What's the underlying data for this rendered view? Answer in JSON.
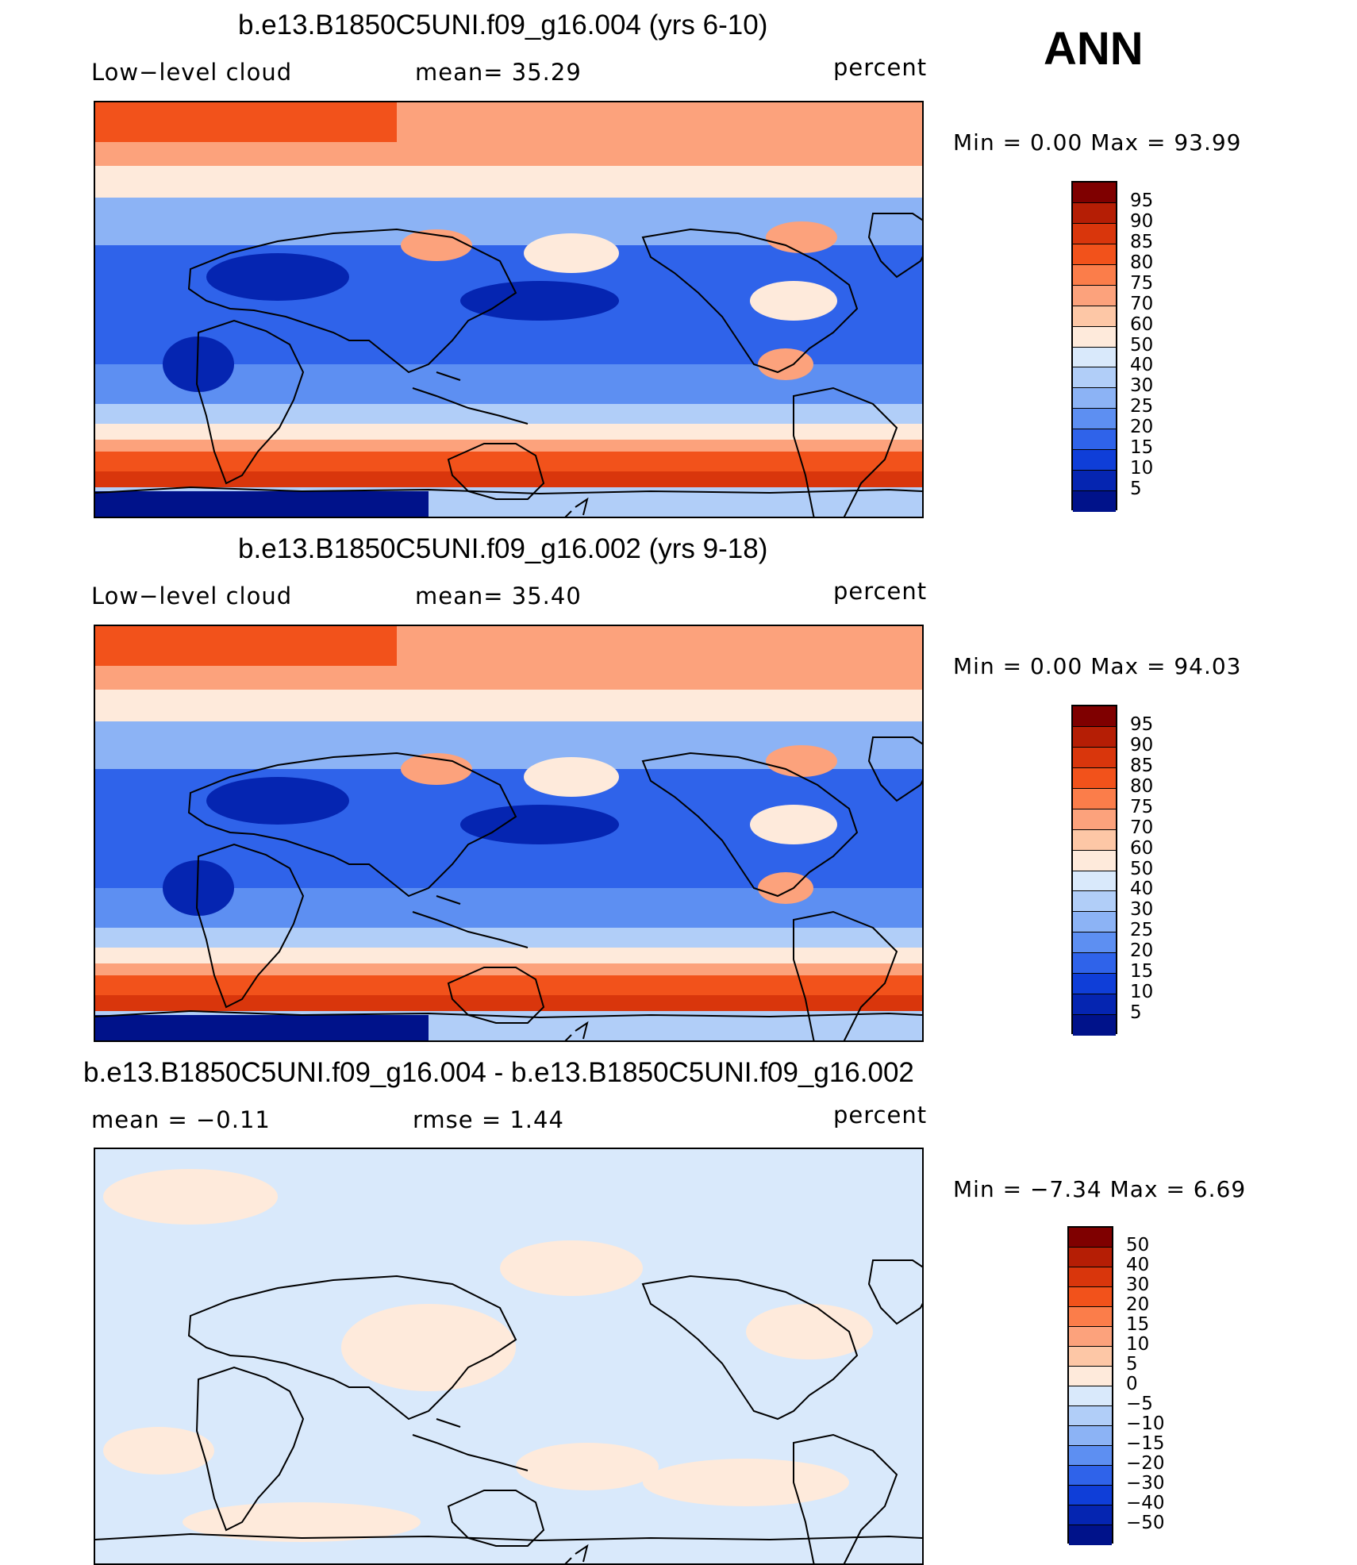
{
  "season": "ANN",
  "panels": [
    {
      "title": "b.e13.B1850C5UNI.f09_g16.004 (yrs 6-10)",
      "left_label": "Low−level cloud",
      "center_label": "mean=   35.29",
      "units": "percent",
      "minmax": "Min =     0.00  Max =    93.99",
      "colorbar": {
        "labels": [
          "95",
          "90",
          "85",
          "80",
          "75",
          "70",
          "60",
          "50",
          "40",
          "30",
          "25",
          "20",
          "15",
          "10",
          "5"
        ],
        "colors": [
          "#7f0000",
          "#b51e05",
          "#d9360c",
          "#f2521b",
          "#fb7d4a",
          "#fca27c",
          "#fdc7a6",
          "#feeadb",
          "#d9e9fb",
          "#b1cef8",
          "#8cb3f5",
          "#5d8ff2",
          "#2f63ea",
          "#0f3ed8",
          "#0525b1",
          "#00128a"
        ]
      },
      "map_style": "cloud"
    },
    {
      "title": "b.e13.B1850C5UNI.f09_g16.002 (yrs 9-18)",
      "left_label": "Low−level cloud",
      "center_label": "mean=   35.40",
      "units": "percent",
      "minmax": "Min =     0.00  Max =    94.03",
      "colorbar": {
        "labels": [
          "95",
          "90",
          "85",
          "80",
          "75",
          "70",
          "60",
          "50",
          "40",
          "30",
          "25",
          "20",
          "15",
          "10",
          "5"
        ],
        "colors": [
          "#7f0000",
          "#b51e05",
          "#d9360c",
          "#f2521b",
          "#fb7d4a",
          "#fca27c",
          "#fdc7a6",
          "#feeadb",
          "#d9e9fb",
          "#b1cef8",
          "#8cb3f5",
          "#5d8ff2",
          "#2f63ea",
          "#0f3ed8",
          "#0525b1",
          "#00128a"
        ]
      },
      "map_style": "cloud"
    },
    {
      "title": "b.e13.B1850C5UNI.f09_g16.004 - b.e13.B1850C5UNI.f09_g16.002",
      "left_label": "mean  =   −0.11",
      "center_label": "rmse  =     1.44",
      "units": "percent",
      "minmax": "Min =   −7.34  Max =     6.69",
      "colorbar": {
        "labels": [
          "50",
          "40",
          "30",
          "20",
          "15",
          "10",
          "5",
          "0",
          "−5",
          "−10",
          "−15",
          "−20",
          "−30",
          "−40",
          "−50"
        ],
        "colors": [
          "#7f0000",
          "#b51e05",
          "#d9360c",
          "#f2521b",
          "#fb7d4a",
          "#fca27c",
          "#fdc7a6",
          "#feeadb",
          "#d9e9fb",
          "#b1cef8",
          "#8cb3f5",
          "#5d8ff2",
          "#2f63ea",
          "#0f3ed8",
          "#0525b1",
          "#00128a"
        ]
      },
      "map_style": "diff"
    }
  ]
}
